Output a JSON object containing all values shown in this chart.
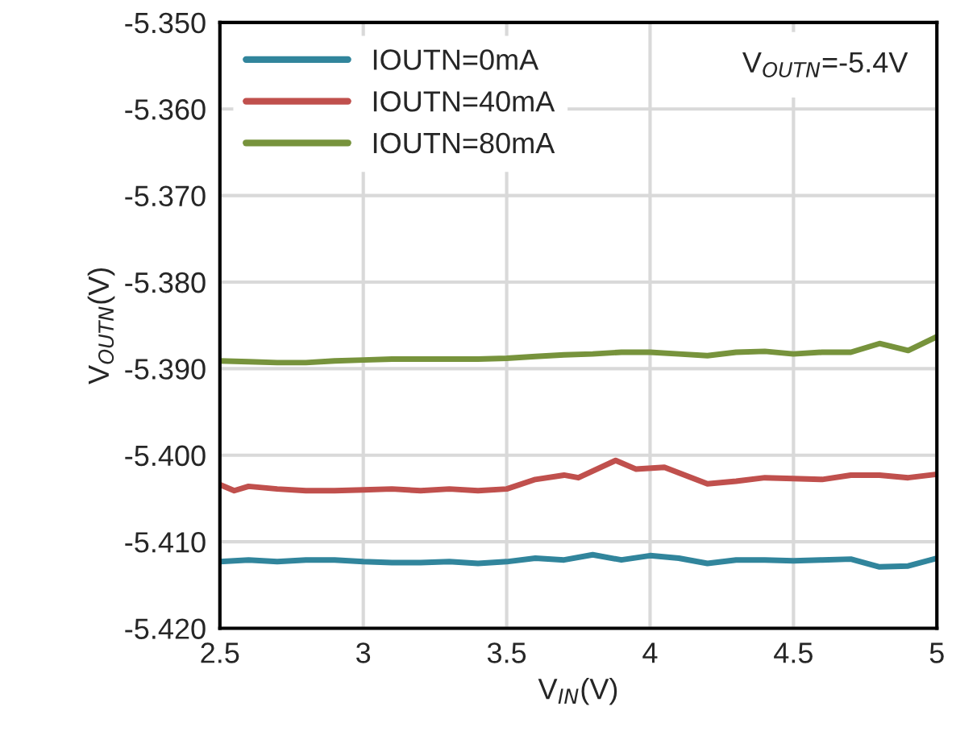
{
  "chart_data": {
    "type": "line",
    "xlabel": "V$_{IN}$(V)",
    "ylabel": "V$_{OUTN}$(V)",
    "annotations": [
      "V$_{OUTN}$=-5.4V"
    ],
    "xlim": [
      2.5,
      5
    ],
    "xticks": [
      2.5,
      3,
      3.5,
      4,
      4.5,
      5
    ],
    "ylim": [
      -5.42,
      -5.35
    ],
    "yticks": [
      {
        "value": -5.42,
        "label": "-5.420"
      },
      {
        "value": -5.41,
        "label": "-5.410"
      },
      {
        "value": -5.4,
        "label": "-5.400"
      },
      {
        "value": -5.39,
        "label": "-5.390"
      },
      {
        "value": -5.38,
        "label": "-5.380"
      },
      {
        "value": -5.37,
        "label": "-5.370"
      },
      {
        "value": -5.36,
        "label": "-5.360"
      },
      {
        "value": -5.35,
        "label": "-5.350"
      }
    ],
    "grid": true,
    "legend": "top left",
    "marker": "none",
    "line_style": "solid",
    "series": [
      {
        "name": "IOUTN=0mA",
        "color": "#31859c",
        "x": [
          2.5,
          2.6,
          2.7,
          2.8,
          2.9,
          3.0,
          3.1,
          3.2,
          3.3,
          3.4,
          3.5,
          3.6,
          3.7,
          3.8,
          3.9,
          4.0,
          4.1,
          4.2,
          4.3,
          4.4,
          4.5,
          4.6,
          4.7,
          4.8,
          4.9,
          5.0
        ],
        "values": [
          -5.4123,
          -5.4121,
          -5.4123,
          -5.4121,
          -5.4121,
          -5.4123,
          -5.4124,
          -5.4124,
          -5.4123,
          -5.4125,
          -5.4123,
          -5.4119,
          -5.4121,
          -5.4115,
          -5.4121,
          -5.4116,
          -5.4119,
          -5.4125,
          -5.4121,
          -5.4121,
          -5.4122,
          -5.4121,
          -5.412,
          -5.4129,
          -5.4128,
          -5.4119
        ]
      },
      {
        "name": "IOUTN=40mA",
        "color": "#c0504d",
        "x": [
          2.5,
          2.55,
          2.6,
          2.7,
          2.8,
          2.9,
          3.0,
          3.1,
          3.2,
          3.3,
          3.4,
          3.5,
          3.6,
          3.7,
          3.75,
          3.88,
          3.95,
          4.05,
          4.2,
          4.3,
          4.4,
          4.5,
          4.6,
          4.7,
          4.8,
          4.9,
          5.0
        ],
        "values": [
          -5.4034,
          -5.4041,
          -5.4036,
          -5.4039,
          -5.4041,
          -5.4041,
          -5.404,
          -5.4039,
          -5.4041,
          -5.4039,
          -5.4041,
          -5.4039,
          -5.4028,
          -5.4023,
          -5.4026,
          -5.4006,
          -5.4016,
          -5.4014,
          -5.4033,
          -5.403,
          -5.4026,
          -5.4027,
          -5.4028,
          -5.4023,
          -5.4023,
          -5.4026,
          -5.4022
        ]
      },
      {
        "name": "IOUTN=80mA",
        "color": "#77933c",
        "x": [
          2.5,
          2.6,
          2.7,
          2.8,
          2.9,
          3.0,
          3.1,
          3.2,
          3.3,
          3.4,
          3.5,
          3.6,
          3.7,
          3.8,
          3.9,
          4.0,
          4.1,
          4.2,
          4.3,
          4.4,
          4.5,
          4.6,
          4.7,
          4.8,
          4.9,
          5.0
        ],
        "values": [
          -5.3891,
          -5.3892,
          -5.3893,
          -5.3893,
          -5.3891,
          -5.389,
          -5.3889,
          -5.3889,
          -5.3889,
          -5.3889,
          -5.3888,
          -5.3886,
          -5.3884,
          -5.3883,
          -5.3881,
          -5.3881,
          -5.3883,
          -5.3885,
          -5.3881,
          -5.388,
          -5.3883,
          -5.3881,
          -5.3881,
          -5.3871,
          -5.3879,
          -5.3863
        ]
      }
    ]
  }
}
